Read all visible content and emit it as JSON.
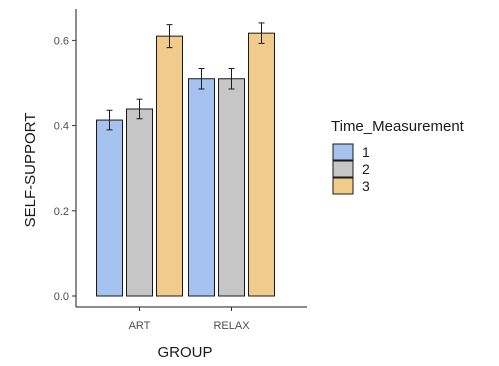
{
  "chart_data": {
    "type": "bar",
    "xlabel": "GROUP",
    "ylabel": "SELF-SUPPORT",
    "categories": [
      "ART",
      "RELAX"
    ],
    "series": [
      {
        "name": "1",
        "color": "#a6c2ee",
        "values": [
          0.413,
          0.51
        ],
        "errors": [
          0.023,
          0.024
        ]
      },
      {
        "name": "2",
        "color": "#c6c6c6",
        "values": [
          0.439,
          0.51
        ],
        "errors": [
          0.023,
          0.024
        ]
      },
      {
        "name": "3",
        "color": "#f0cb8c",
        "values": [
          0.61,
          0.617
        ],
        "errors": [
          0.027,
          0.024
        ]
      }
    ],
    "ylim": [
      0,
      0.66
    ],
    "yticks": [
      0.0,
      0.2,
      0.4,
      0.6
    ],
    "ytick_labels": [
      "0.0",
      "0.2",
      "0.4",
      "0.6"
    ],
    "legend": {
      "title": "Time_Measurement",
      "position": "right"
    },
    "grid": false,
    "error_bars": true
  }
}
